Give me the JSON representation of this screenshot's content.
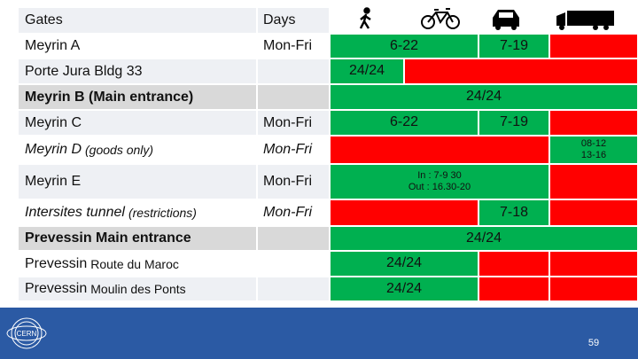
{
  "header": {
    "gates": "Gates",
    "days": "Days"
  },
  "colors": {
    "green": "#00b050",
    "red": "#ff0000",
    "row_light": "#eef0f4",
    "row_white": "#ffffff",
    "row_bold": "#d9d9d9",
    "footer": "#2b5aa4"
  },
  "rows": [
    {
      "gate": "Meyrin A",
      "days": "Mon-Fri",
      "style": "normal",
      "cells": [
        {
          "span": 2,
          "color": "green",
          "text": [
            "6-22"
          ]
        },
        {
          "span": 1,
          "color": "green",
          "text": [
            "7-19"
          ]
        },
        {
          "span": 1,
          "color": "red",
          "text": []
        }
      ]
    },
    {
      "gate": "Porte Jura Bldg 33",
      "style": "normal",
      "cells": [
        {
          "span": 1,
          "color": "green",
          "text": [
            "24/24"
          ]
        },
        {
          "span": 3,
          "color": "red",
          "text": []
        }
      ]
    },
    {
      "gate": "Meyrin B (Main entrance)",
      "style": "bold",
      "cells": [
        {
          "span": 4,
          "color": "green",
          "text": [
            "24/24"
          ]
        }
      ]
    },
    {
      "gate": "Meyrin C",
      "days": "Mon-Fri",
      "style": "normal",
      "cells": [
        {
          "span": 2,
          "color": "green",
          "text": [
            "6-22"
          ]
        },
        {
          "span": 1,
          "color": "green",
          "text": [
            "7-19"
          ]
        },
        {
          "span": 1,
          "color": "red",
          "text": []
        }
      ]
    },
    {
      "gate": "Meyrin D",
      "note": "(goods only)",
      "days": "Mon-Fri",
      "style": "italic",
      "cells": [
        {
          "span": 3,
          "color": "red",
          "text": []
        },
        {
          "span": 1,
          "color": "green",
          "text": [
            "08-12",
            "13-16"
          ],
          "small": true
        }
      ]
    },
    {
      "gate": "Meyrin E",
      "days": "Mon-Fri",
      "style": "normal",
      "cells": [
        {
          "span": 3,
          "color": "green",
          "text": [
            "In : 7-9 30",
            "Out : 16.30-20"
          ],
          "small": true
        },
        {
          "span": 1,
          "color": "red",
          "text": []
        }
      ]
    },
    {
      "gate": "Intersites tunnel",
      "note": "(restrictions)",
      "days": "Mon-Fri",
      "style": "italic",
      "cells": [
        {
          "span": 2,
          "color": "red",
          "text": []
        },
        {
          "span": 1,
          "color": "green",
          "text": [
            "7-18"
          ]
        },
        {
          "span": 1,
          "color": "red",
          "text": []
        }
      ]
    },
    {
      "gate": "Prevessin Main entrance",
      "style": "bold",
      "cells": [
        {
          "span": 4,
          "color": "green",
          "text": [
            "24/24"
          ]
        }
      ]
    },
    {
      "gate": "Prevessin",
      "note": "Route du Maroc",
      "style": "normal",
      "cells": [
        {
          "span": 2,
          "color": "green",
          "text": [
            "24/24"
          ]
        },
        {
          "span": 1,
          "color": "red",
          "text": []
        },
        {
          "span": 1,
          "color": "red",
          "text": []
        }
      ]
    },
    {
      "gate": "Prevessin",
      "note": "Moulin des Ponts",
      "style": "normal",
      "cells": [
        {
          "span": 2,
          "color": "green",
          "text": [
            "24/24"
          ]
        },
        {
          "span": 1,
          "color": "red",
          "text": []
        },
        {
          "span": 1,
          "color": "red",
          "text": []
        }
      ]
    }
  ],
  "footer": {
    "logo": "CERN",
    "page": "59"
  }
}
